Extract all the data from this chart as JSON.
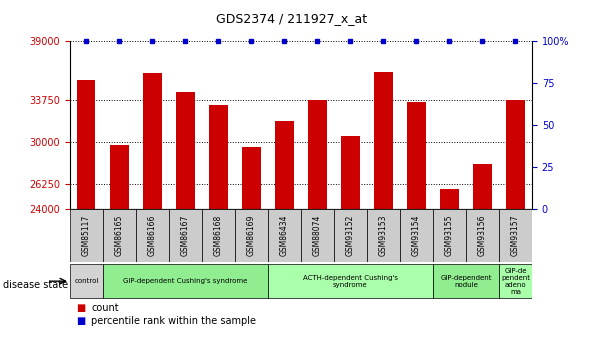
{
  "title": "GDS2374 / 211927_x_at",
  "samples": [
    "GSM85117",
    "GSM86165",
    "GSM86166",
    "GSM86167",
    "GSM86168",
    "GSM86169",
    "GSM86434",
    "GSM88074",
    "GSM93152",
    "GSM93153",
    "GSM93154",
    "GSM93155",
    "GSM93156",
    "GSM93157"
  ],
  "counts": [
    35500,
    29700,
    36200,
    34500,
    33300,
    29500,
    31900,
    33750,
    30500,
    36300,
    33600,
    25800,
    28000,
    33750
  ],
  "ylim_left": [
    24000,
    39000
  ],
  "ylim_right": [
    0,
    100
  ],
  "yticks_left": [
    24000,
    26250,
    30000,
    33750,
    39000
  ],
  "yticks_right": [
    0,
    25,
    50,
    75,
    100
  ],
  "bar_color": "#cc0000",
  "dot_color": "#0000cc",
  "disease_groups": [
    {
      "label": "control",
      "start": 0,
      "end": 1,
      "color": "#d3d3d3"
    },
    {
      "label": "GIP-dependent Cushing's syndrome",
      "start": 1,
      "end": 6,
      "color": "#90ee90"
    },
    {
      "label": "ACTH-dependent Cushing's\nsyndrome",
      "start": 6,
      "end": 11,
      "color": "#aaffaa"
    },
    {
      "label": "GIP-dependent\nnodule",
      "start": 11,
      "end": 13,
      "color": "#90ee90"
    },
    {
      "label": "GIP-de\npendent\nadeno\nma",
      "start": 13,
      "end": 14,
      "color": "#aaffaa"
    }
  ],
  "legend_count_label": "count",
  "legend_percentile_label": "percentile rank within the sample",
  "tick_label_color_left": "#cc0000",
  "tick_label_color_right": "#0000cc",
  "xticklabel_bg": "#cccccc",
  "right_axis_label_100": "100%"
}
